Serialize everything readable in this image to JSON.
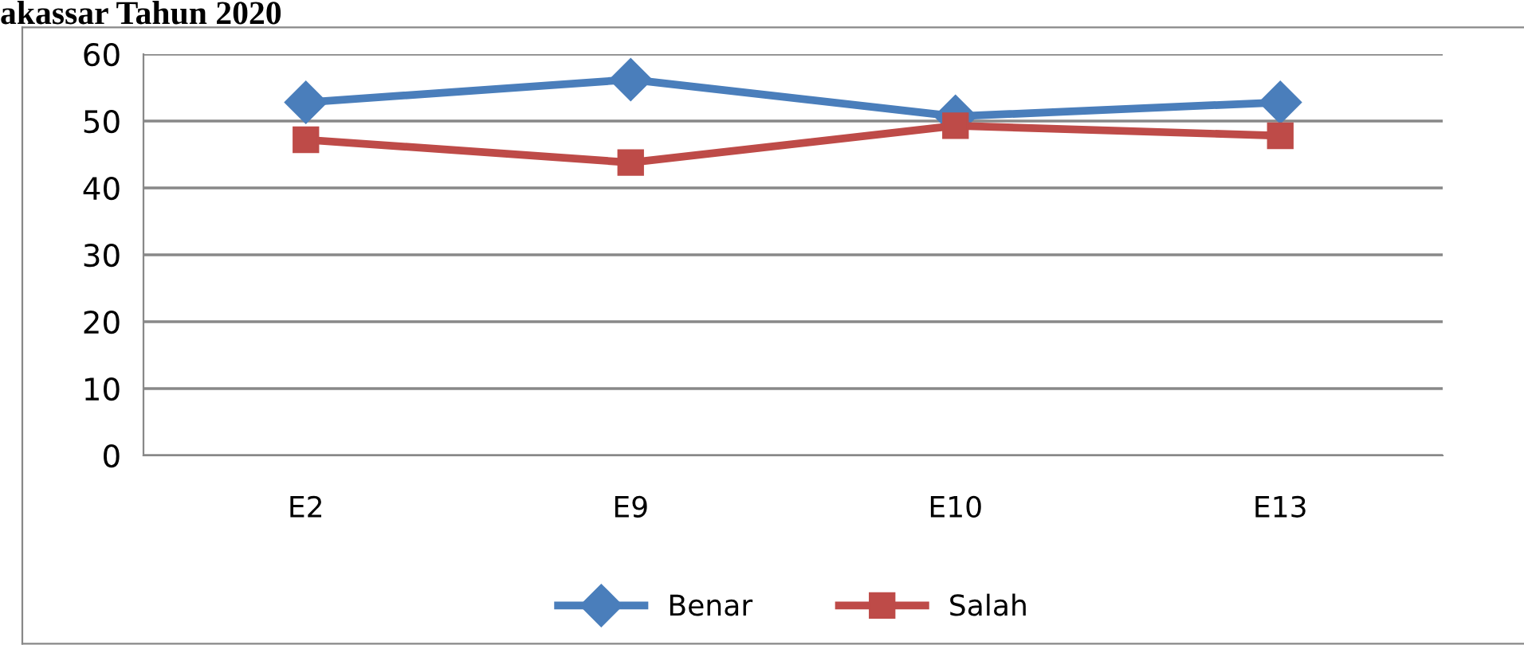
{
  "chart_data": {
    "type": "line",
    "title": "akassar Tahun 2020",
    "categories": [
      "E2",
      "E9",
      "E10",
      "E13"
    ],
    "series": [
      {
        "name": "Benar",
        "color": "#4a7ebb",
        "marker": "diamond",
        "values": [
          52.8,
          56.2,
          50.7,
          52.8
        ]
      },
      {
        "name": "Salah",
        "color": "#be4b48",
        "marker": "square",
        "values": [
          47.2,
          43.8,
          49.3,
          47.8
        ]
      }
    ],
    "ylim": [
      0,
      60
    ],
    "yticks": [
      0,
      10,
      20,
      30,
      40,
      50,
      60
    ],
    "grid": "y",
    "legend": "bottom",
    "line_style": "solid"
  }
}
